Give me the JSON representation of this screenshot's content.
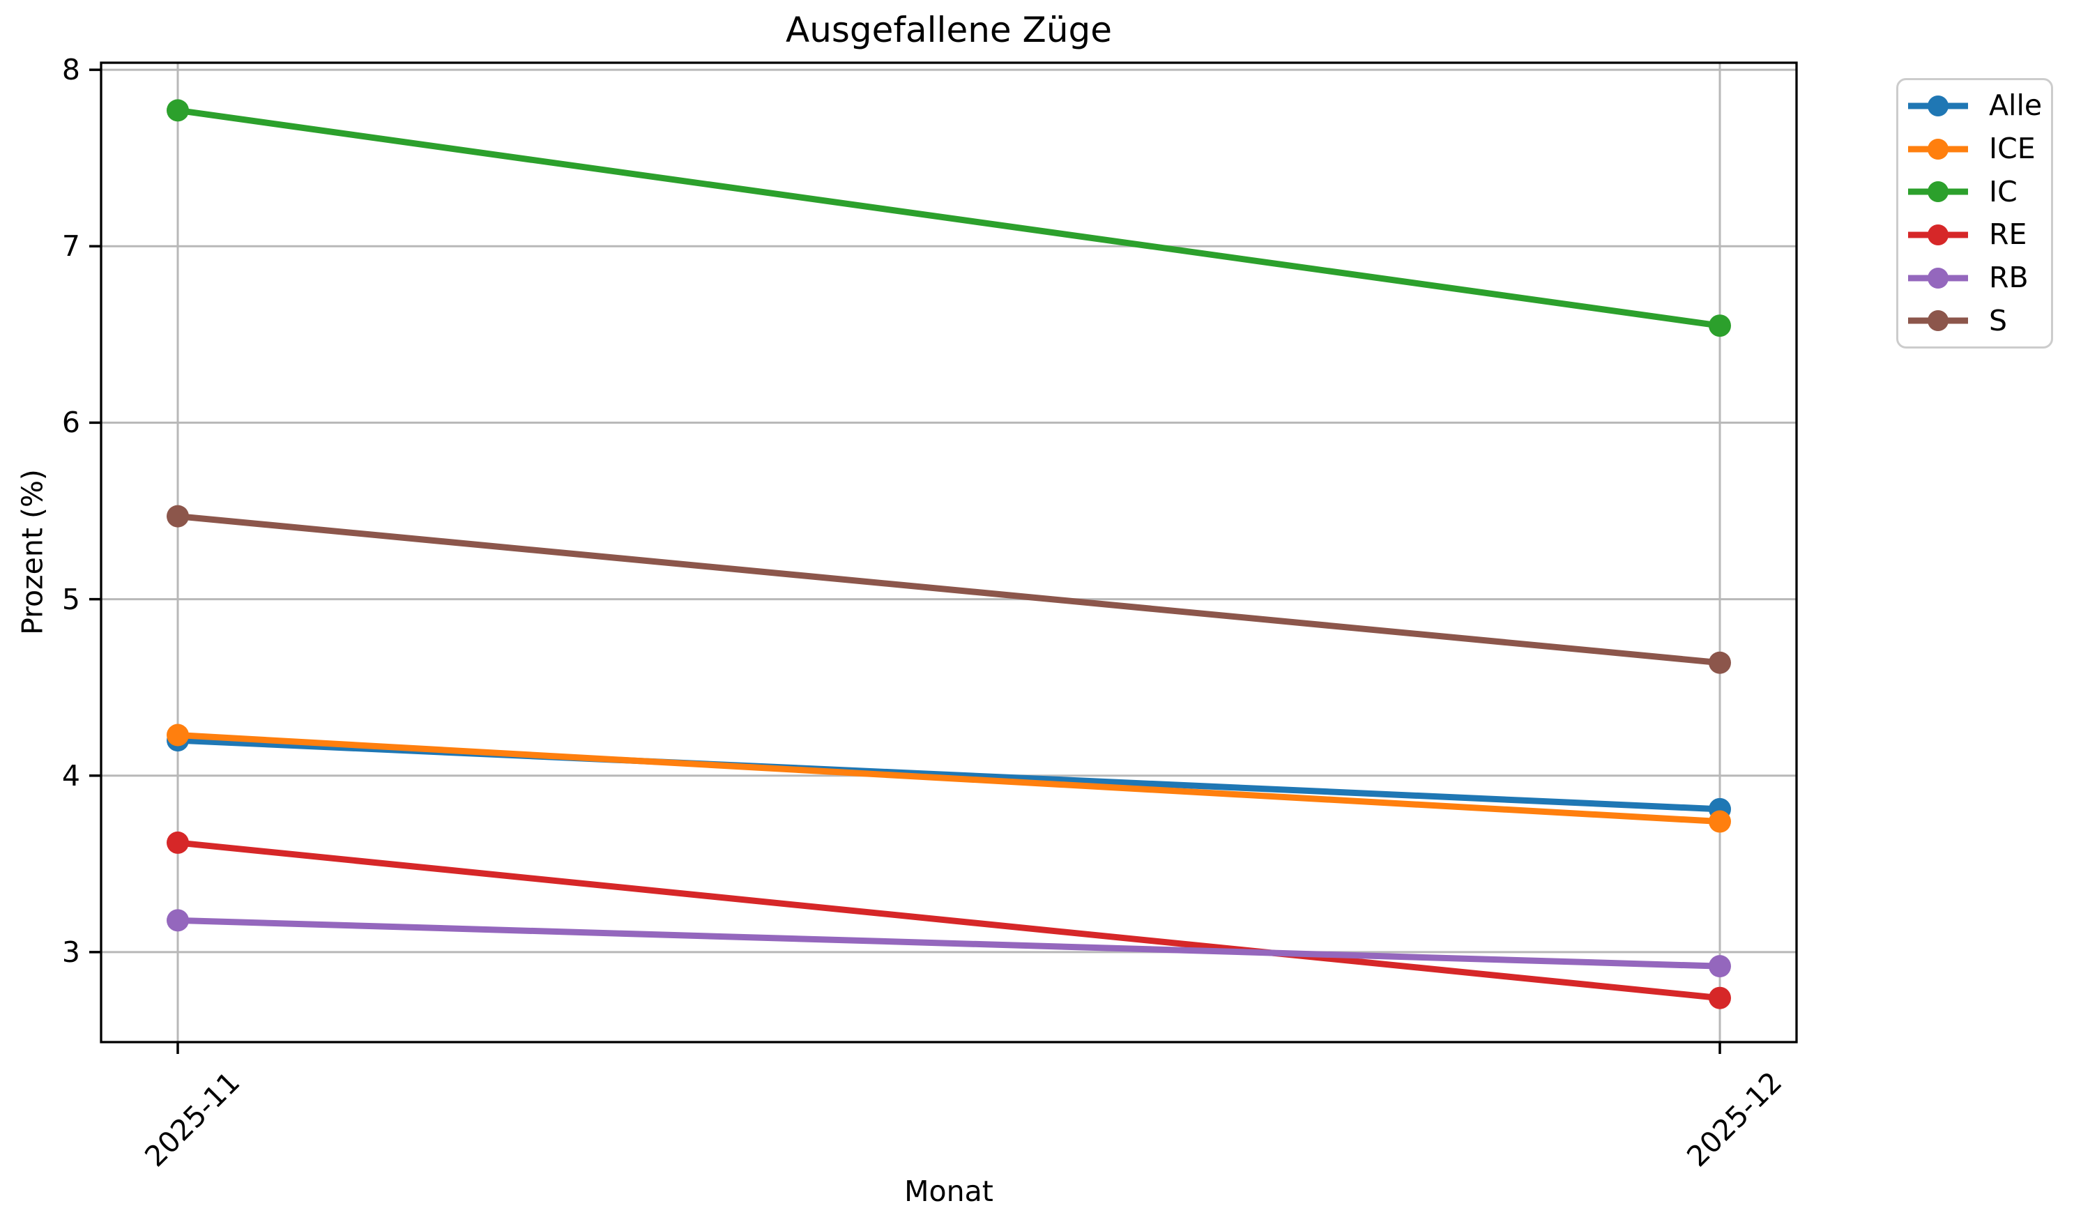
{
  "chart_data": {
    "type": "line",
    "title": "Ausgefallene Züge",
    "xlabel": "Monat",
    "ylabel": "Prozent (%)",
    "categories": [
      "2025-11",
      "2025-12"
    ],
    "series": [
      {
        "name": "Alle",
        "color": "#1f77b4",
        "values": [
          4.2,
          3.81
        ]
      },
      {
        "name": "ICE",
        "color": "#ff7f0e",
        "values": [
          4.23,
          3.74
        ]
      },
      {
        "name": "IC",
        "color": "#2ca02c",
        "values": [
          7.77,
          6.55
        ]
      },
      {
        "name": "RE",
        "color": "#d62728",
        "values": [
          3.62,
          2.74
        ]
      },
      {
        "name": "RB",
        "color": "#9467bd",
        "values": [
          3.18,
          2.92
        ]
      },
      {
        "name": "S",
        "color": "#8c564b",
        "values": [
          5.47,
          4.64
        ]
      }
    ],
    "y_ticks": [
      3,
      4,
      5,
      6,
      7,
      8
    ],
    "ylim": [
      2.49,
      8.04
    ],
    "grid": true,
    "grid_color": "#b8b8b8",
    "axis_color": "#000000",
    "legend_position": "outside-upper-right"
  }
}
